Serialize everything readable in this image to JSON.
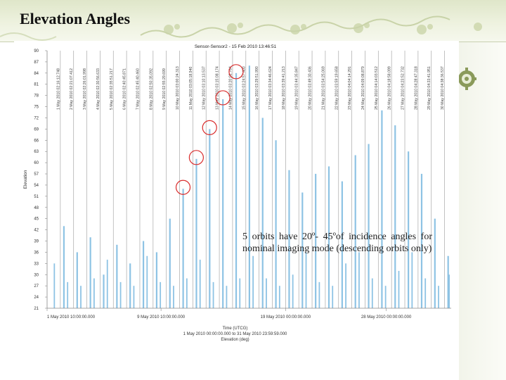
{
  "slide": {
    "title": "Elevation Angles",
    "caption": "5 orbits have 20º- 45ºof incidence angles for nominal imaging mode (descending orbits only)"
  },
  "colors": {
    "bar": "#8ec3e4",
    "circle": "#d92b2b",
    "banner": "#e3e9cf"
  },
  "chart_data": {
    "type": "bar",
    "title": "Sensor-Sensor2 - 15 Feb 2010 13:46:51",
    "ylabel": "Elevation",
    "ylim": [
      21,
      90
    ],
    "yticks": [
      21,
      24,
      27,
      30,
      33,
      36,
      39,
      42,
      45,
      48,
      51,
      54,
      57,
      60,
      63,
      66,
      69,
      72,
      75,
      78,
      81,
      84,
      87,
      90
    ],
    "ytick_labels": [
      "21",
      "24",
      "27",
      "30",
      "33",
      "36",
      "39",
      "42",
      "45",
      "48",
      "51",
      "54",
      "57",
      "60",
      "63",
      "66",
      "69",
      "72",
      "75",
      "78",
      "81",
      "84",
      "87",
      "90"
    ],
    "xlim": [
      0,
      30.5
    ],
    "xtick_labels": [
      {
        "t": 0,
        "label": "1 May 2010 10:00:00.000"
      },
      {
        "t": 8.6,
        "label": "9 May 2010 10:00:00.000"
      },
      {
        "t": 18,
        "label": "19 May 2010 00:00:00.000"
      },
      {
        "t": 25.6,
        "label": "28 May 2010 00:00:00.000"
      }
    ],
    "xlabel_lines": [
      "Time (UTCG)",
      "1 May 2010 00:00:00.000 to 31 May 2010 23:59:59.000",
      "Elevation (deg)"
    ],
    "passes": [
      {
        "t": 1.0,
        "label": "1 May 2010 02:16:12.748",
        "value": 43
      },
      {
        "t": 2.0,
        "label": "2 May 2010 02:21:07.412",
        "value": 36
      },
      {
        "t": 3.0,
        "label": "3 May 2010 02:26:01.998",
        "value": 40
      },
      {
        "t": 4.0,
        "label": "4 May 2010 02:30:56.633",
        "value": 30
      },
      {
        "t": 5.0,
        "label": "5 May 2010 02:35:51.217",
        "value": 38
      },
      {
        "t": 6.0,
        "label": "6 May 2010 02:40:45.871",
        "value": 33
      },
      {
        "t": 7.0,
        "label": "7 May 2010 02:45:40.460",
        "value": 39
      },
      {
        "t": 8.0,
        "label": "8 May 2010 02:50:35.092",
        "value": 36
      },
      {
        "t": 9.0,
        "label": "9 May 2010 02:55:29.699",
        "value": 45
      },
      {
        "t": 10.0,
        "label": "10 May 2010 03:00:24.313",
        "value": 53
      },
      {
        "t": 11.0,
        "label": "11 May 2010 03:05:18.940",
        "value": 61
      },
      {
        "t": 12.0,
        "label": "12 May 2010 03:10:13.537",
        "value": 69
      },
      {
        "t": 13.0,
        "label": "13 May 2010 03:15:08.174",
        "value": 77
      },
      {
        "t": 14.0,
        "label": "14 May 2010 03:20:02.764",
        "value": 84
      },
      {
        "t": 15.0,
        "label": "15 May 2010 03:24:57.400",
        "value": 86
      },
      {
        "t": 16.0,
        "label": "16 May 2010 03:29:51.990",
        "value": 72
      },
      {
        "t": 17.0,
        "label": "17 May 2010 03:34:46.624",
        "value": 66
      },
      {
        "t": 18.0,
        "label": "18 May 2010 03:39:41.213",
        "value": 58
      },
      {
        "t": 19.0,
        "label": "19 May 2010 03:44:35.847",
        "value": 52
      },
      {
        "t": 20.0,
        "label": "20 May 2010 03:49:30.436",
        "value": 57
      },
      {
        "t": 21.0,
        "label": "21 May 2010 03:54:25.069",
        "value": 59
      },
      {
        "t": 22.0,
        "label": "22 May 2010 03:59:19.658",
        "value": 55
      },
      {
        "t": 23.0,
        "label": "23 May 2010 04:04:14.291",
        "value": 62
      },
      {
        "t": 24.0,
        "label": "24 May 2010 04:09:08.879",
        "value": 65
      },
      {
        "t": 25.0,
        "label": "25 May 2010 04:14:03.512",
        "value": 74
      },
      {
        "t": 26.0,
        "label": "26 May 2010 04:18:58.099",
        "value": 70
      },
      {
        "t": 27.0,
        "label": "27 May 2010 04:23:52.732",
        "value": 63
      },
      {
        "t": 28.0,
        "label": "28 May 2010 04:28:47.318",
        "value": 57
      },
      {
        "t": 29.0,
        "label": "29 May 2010 04:33:41.951",
        "value": 45
      },
      {
        "t": 30.0,
        "label": "30 May 2010 04:38:36.537",
        "value": 35
      }
    ],
    "minor_passes": [
      {
        "t": 0.5,
        "value": 33
      },
      {
        "t": 1.5,
        "value": 28
      },
      {
        "t": 2.5,
        "value": 27
      },
      {
        "t": 3.5,
        "value": 29
      },
      {
        "t": 4.5,
        "value": 34
      },
      {
        "t": 5.5,
        "value": 28
      },
      {
        "t": 6.5,
        "value": 27
      },
      {
        "t": 7.5,
        "value": 35
      },
      {
        "t": 8.5,
        "value": 28
      },
      {
        "t": 9.5,
        "value": 27
      },
      {
        "t": 10.5,
        "value": 29
      },
      {
        "t": 11.5,
        "value": 34
      },
      {
        "t": 12.5,
        "value": 28
      },
      {
        "t": 13.5,
        "value": 27
      },
      {
        "t": 14.5,
        "value": 29
      },
      {
        "t": 15.5,
        "value": 35
      },
      {
        "t": 16.5,
        "value": 29
      },
      {
        "t": 17.5,
        "value": 27
      },
      {
        "t": 18.5,
        "value": 30
      },
      {
        "t": 19.5,
        "value": 36
      },
      {
        "t": 20.5,
        "value": 28
      },
      {
        "t": 21.5,
        "value": 27
      },
      {
        "t": 22.5,
        "value": 33
      },
      {
        "t": 23.5,
        "value": 36
      },
      {
        "t": 24.5,
        "value": 29
      },
      {
        "t": 25.5,
        "value": 27
      },
      {
        "t": 26.5,
        "value": 31
      },
      {
        "t": 27.5,
        "value": 36
      },
      {
        "t": 28.5,
        "value": 29
      },
      {
        "t": 29.5,
        "value": 27
      },
      {
        "t": 30.3,
        "value": 30
      }
    ],
    "highlighted_passes": [
      {
        "t": 10.0,
        "value": 53
      },
      {
        "t": 11.0,
        "value": 61
      },
      {
        "t": 12.0,
        "value": 69
      },
      {
        "t": 13.0,
        "value": 77
      },
      {
        "t": 14.0,
        "value": 84
      }
    ]
  }
}
